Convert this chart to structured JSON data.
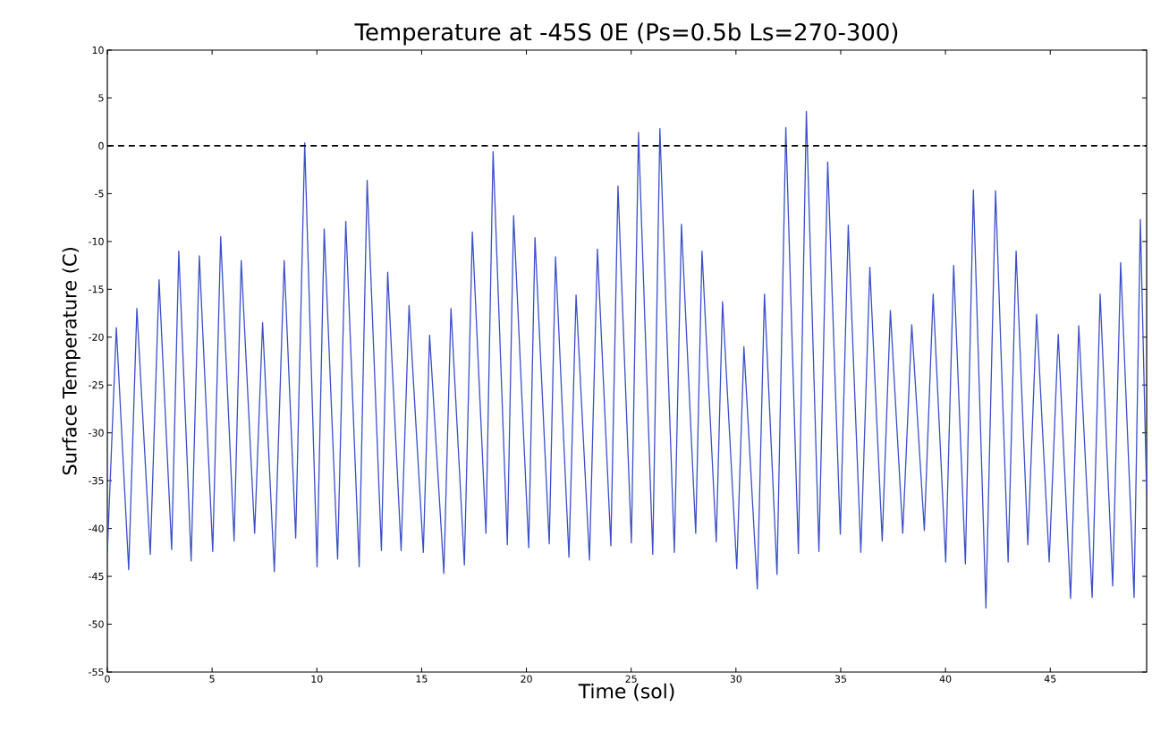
{
  "chart_data": {
    "type": "line",
    "title": "Temperature at -45S 0E   (Ps=0.5b Ls=270-300)",
    "xlabel": "Time (sol)",
    "ylabel": "Surface Temperature (C)",
    "xlim": [
      0,
      49.6
    ],
    "ylim": [
      -55,
      10
    ],
    "xticks": [
      0,
      5,
      10,
      15,
      20,
      25,
      30,
      35,
      40,
      45
    ],
    "yticks": [
      -55,
      -50,
      -45,
      -40,
      -35,
      -30,
      -25,
      -20,
      -15,
      -10,
      -5,
      0,
      5,
      10
    ],
    "grid": false,
    "marker": "none",
    "line_style": "solid",
    "ref_lines": [
      {
        "axis": "y",
        "value": 0,
        "color": "#000000",
        "line_style": "dashed"
      }
    ],
    "series": [
      {
        "color": "#3a4fc8",
        "x": [
          0,
          0.43,
          1.02,
          1.41,
          2.05,
          2.47,
          3.07,
          3.41,
          4.0,
          4.39,
          5.03,
          5.41,
          6.05,
          6.39,
          7.03,
          7.41,
          7.97,
          8.44,
          8.99,
          9.42,
          10.01,
          10.35,
          10.99,
          11.38,
          12.02,
          12.4,
          13.08,
          13.38,
          14.02,
          14.4,
          15.08,
          15.38,
          16.06,
          16.4,
          17.04,
          17.42,
          18.07,
          18.41,
          19.09,
          19.39,
          20.11,
          20.41,
          21.09,
          21.39,
          22.03,
          22.37,
          23.01,
          23.39,
          24.03,
          24.37,
          25.01,
          25.35,
          26.03,
          26.37,
          27.06,
          27.4,
          28.08,
          28.38,
          29.06,
          29.36,
          30.04,
          30.38,
          31.02,
          31.36,
          31.96,
          32.38,
          32.98,
          33.36,
          33.96,
          34.38,
          34.98,
          35.36,
          35.96,
          36.39,
          36.98,
          37.37,
          37.96,
          38.39,
          38.99,
          39.41,
          40.01,
          40.39,
          40.95,
          41.33,
          41.93,
          42.39,
          42.99,
          43.37,
          43.93,
          44.35,
          44.95,
          45.38,
          45.97,
          46.36,
          47.0,
          47.38,
          47.98,
          48.36,
          49.0,
          49.3,
          49.6
        ],
        "values": [
          -42.5,
          -19,
          -44.3,
          -17,
          -42.7,
          -14,
          -42.2,
          -11,
          -43.4,
          -11.5,
          -42.4,
          -9.5,
          -41.3,
          -12,
          -40.5,
          -18.5,
          -44.5,
          -12,
          -41,
          0.3,
          -44,
          -8.7,
          -43.2,
          -7.9,
          -44,
          -3.6,
          -42.3,
          -13.2,
          -42.3,
          -16.7,
          -42.5,
          -19.8,
          -44.7,
          -17,
          -43.8,
          -9,
          -40.5,
          -0.6,
          -41.7,
          -7.3,
          -42,
          -9.6,
          -41.6,
          -11.6,
          -43,
          -15.6,
          -43.3,
          -10.8,
          -41.8,
          -4.2,
          -41.5,
          1.4,
          -42.7,
          1.8,
          -42.5,
          -8.2,
          -40.5,
          -11,
          -41.4,
          -16.3,
          -44.2,
          -21,
          -46.3,
          -15.5,
          -44.8,
          1.9,
          -42.6,
          3.6,
          -42.4,
          -1.7,
          -40.6,
          -8.3,
          -42.5,
          -12.7,
          -41.3,
          -17.2,
          -40.5,
          -18.7,
          -40.2,
          -15.5,
          -43.5,
          -12.5,
          -43.7,
          -4.6,
          -48.3,
          -4.7,
          -43.5,
          -11,
          -41.7,
          -17.6,
          -43.5,
          -19.7,
          -47.3,
          -18.8,
          -47.2,
          -15.5,
          -46,
          -12.2,
          -47.2,
          -7.7,
          -36.5
        ]
      }
    ]
  }
}
